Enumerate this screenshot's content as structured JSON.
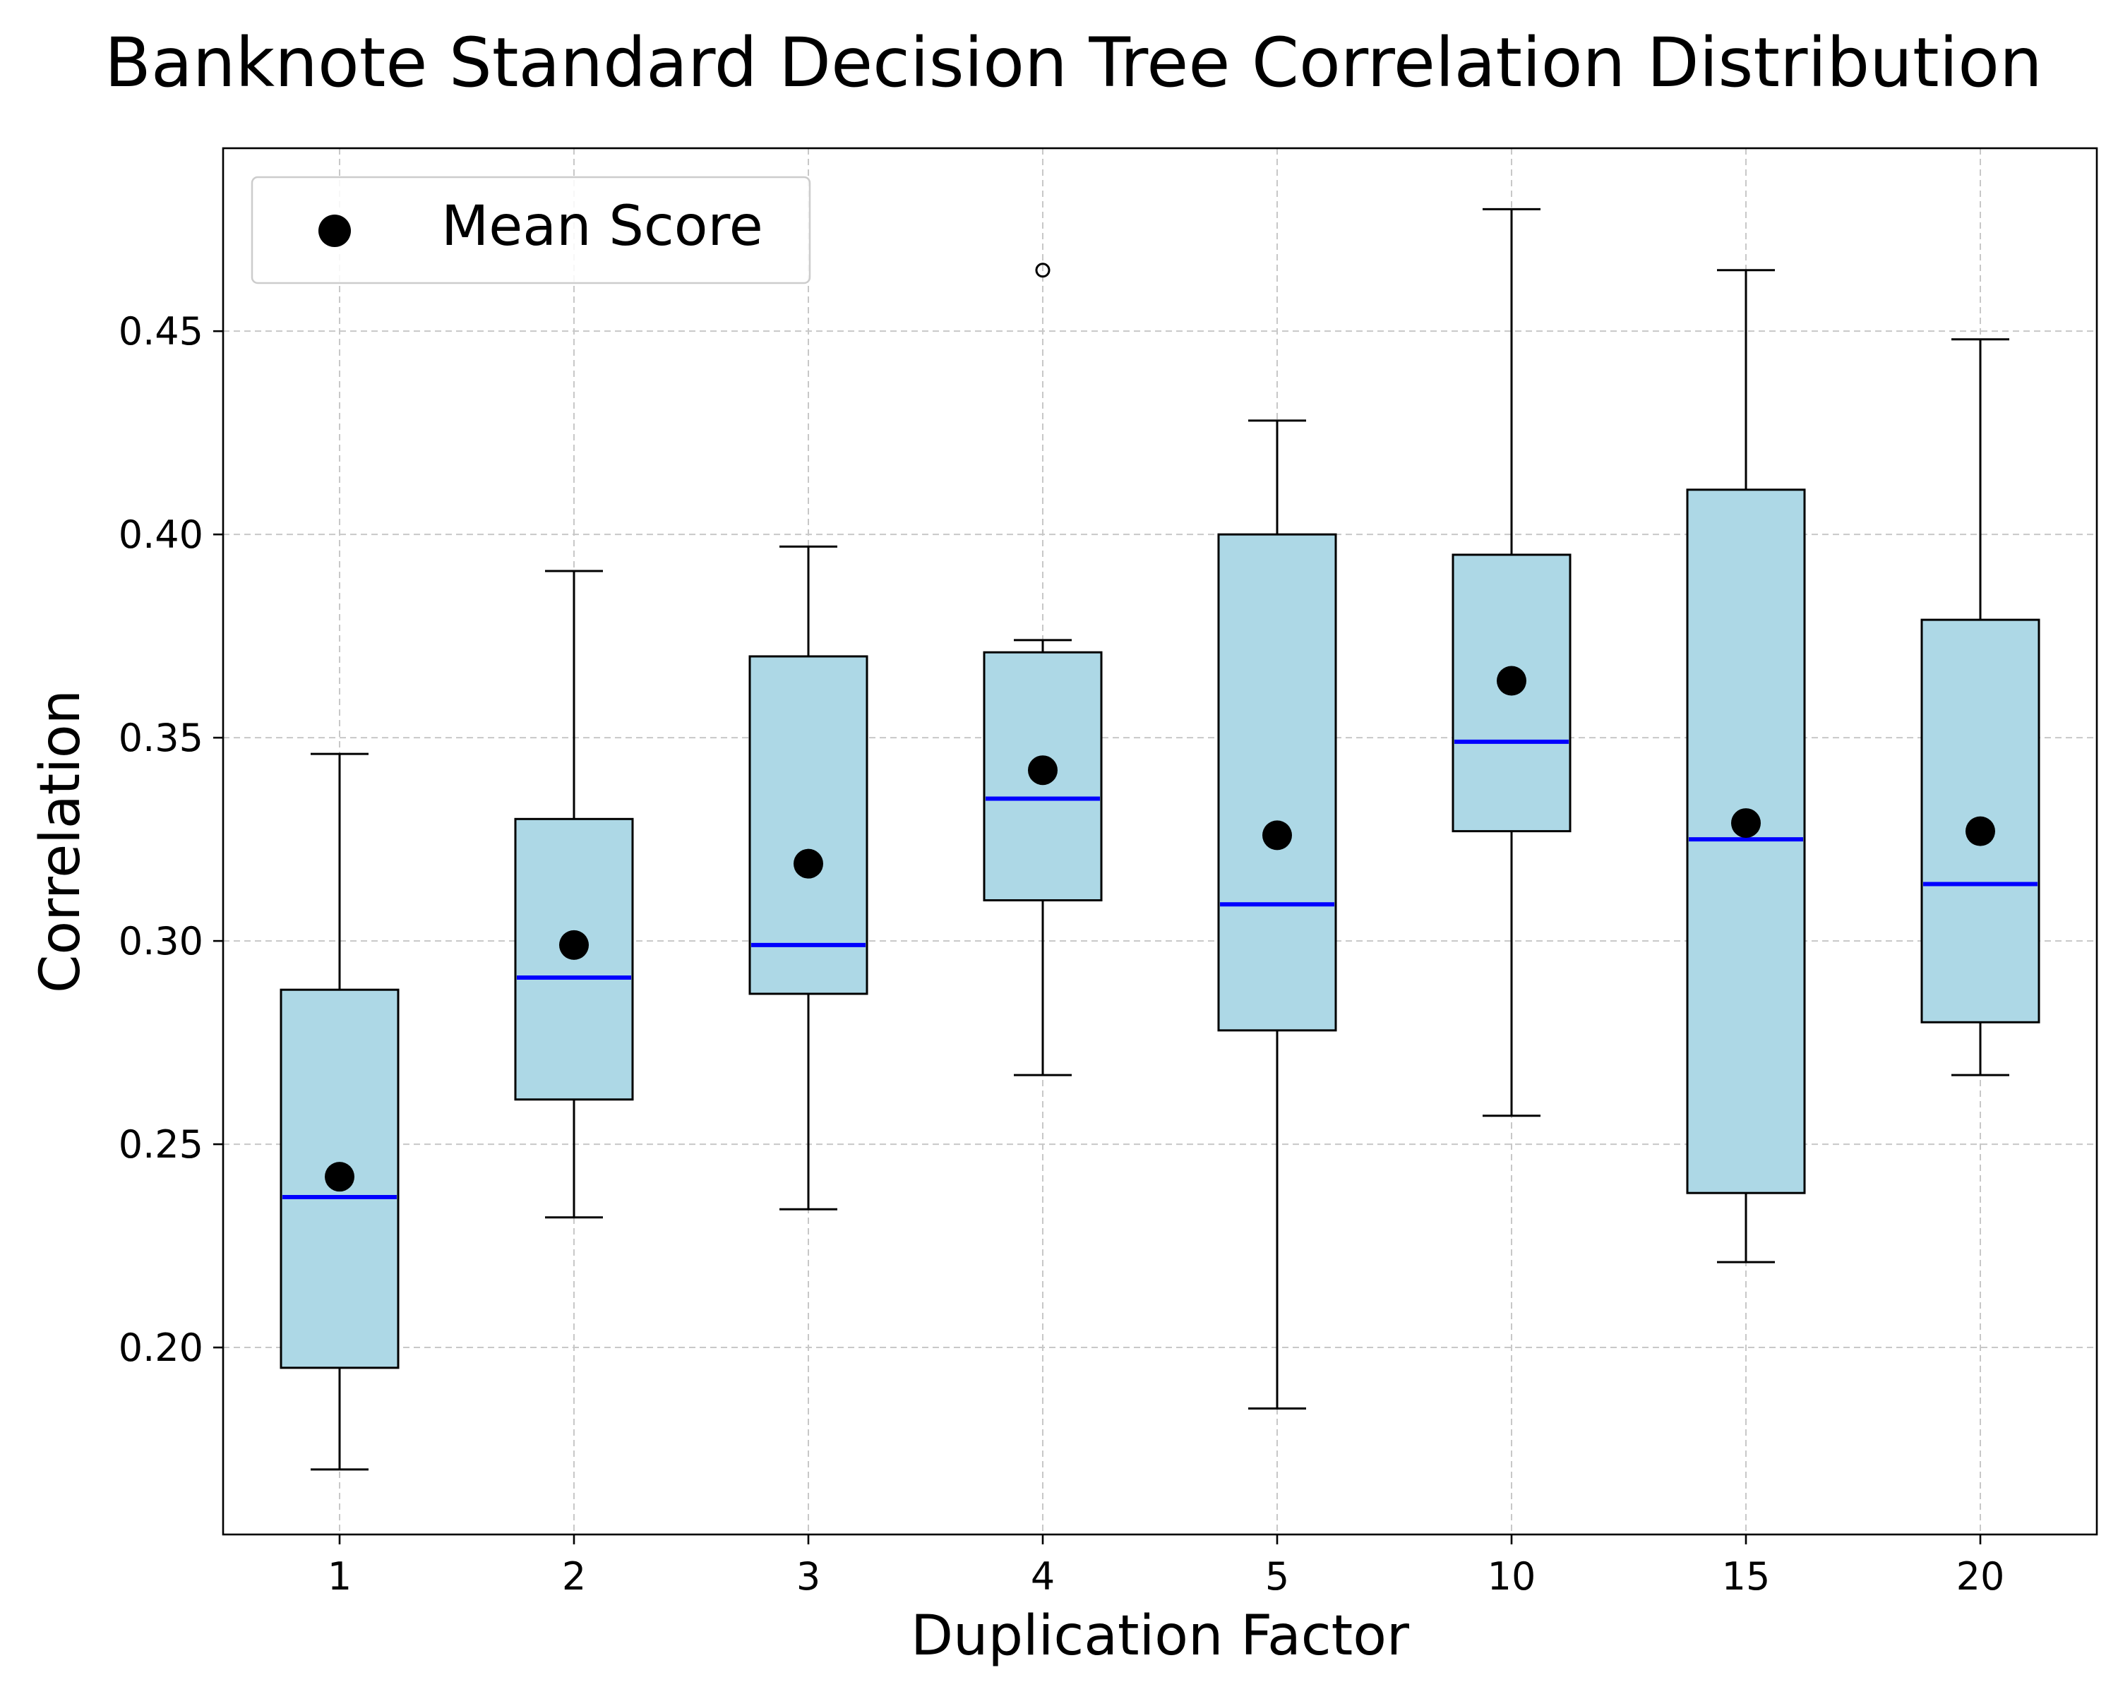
{
  "chart_data": {
    "type": "box",
    "title": "Banknote Standard Decision Tree Correlation Distribution",
    "xlabel": "Duplication Factor",
    "ylabel": "Correlation",
    "categories": [
      "1",
      "2",
      "3",
      "4",
      "5",
      "10",
      "15",
      "20"
    ],
    "yticks": [
      "0.20",
      "0.25",
      "0.30",
      "0.35",
      "0.40",
      "0.45"
    ],
    "ylim": [
      0.154,
      0.495
    ],
    "grid": true,
    "legend": {
      "position": "top-left",
      "entries": [
        "Mean Score"
      ]
    },
    "colors": {
      "box_fill": "#add8e6",
      "median": "#0000ff",
      "mean_marker": "#000000"
    },
    "boxes": [
      {
        "category": "1",
        "whisker_low": 0.17,
        "q1": 0.195,
        "median": 0.237,
        "q3": 0.288,
        "whisker_high": 0.346,
        "mean": 0.242,
        "outliers": []
      },
      {
        "category": "2",
        "whisker_low": 0.232,
        "q1": 0.261,
        "median": 0.291,
        "q3": 0.33,
        "whisker_high": 0.391,
        "mean": 0.299,
        "outliers": []
      },
      {
        "category": "3",
        "whisker_low": 0.234,
        "q1": 0.287,
        "median": 0.299,
        "q3": 0.37,
        "whisker_high": 0.397,
        "mean": 0.319,
        "outliers": []
      },
      {
        "category": "4",
        "whisker_low": 0.267,
        "q1": 0.31,
        "median": 0.335,
        "q3": 0.371,
        "whisker_high": 0.374,
        "mean": 0.342,
        "outliers": [
          0.465
        ]
      },
      {
        "category": "5",
        "whisker_low": 0.185,
        "q1": 0.278,
        "median": 0.309,
        "q3": 0.4,
        "whisker_high": 0.428,
        "mean": 0.326,
        "outliers": []
      },
      {
        "category": "10",
        "whisker_low": 0.257,
        "q1": 0.327,
        "median": 0.349,
        "q3": 0.395,
        "whisker_high": 0.48,
        "mean": 0.364,
        "outliers": []
      },
      {
        "category": "15",
        "whisker_low": 0.221,
        "q1": 0.238,
        "median": 0.325,
        "q3": 0.411,
        "whisker_high": 0.465,
        "mean": 0.329,
        "outliers": []
      },
      {
        "category": "20",
        "whisker_low": 0.267,
        "q1": 0.28,
        "median": 0.314,
        "q3": 0.379,
        "whisker_high": 0.448,
        "mean": 0.327,
        "outliers": []
      }
    ]
  }
}
